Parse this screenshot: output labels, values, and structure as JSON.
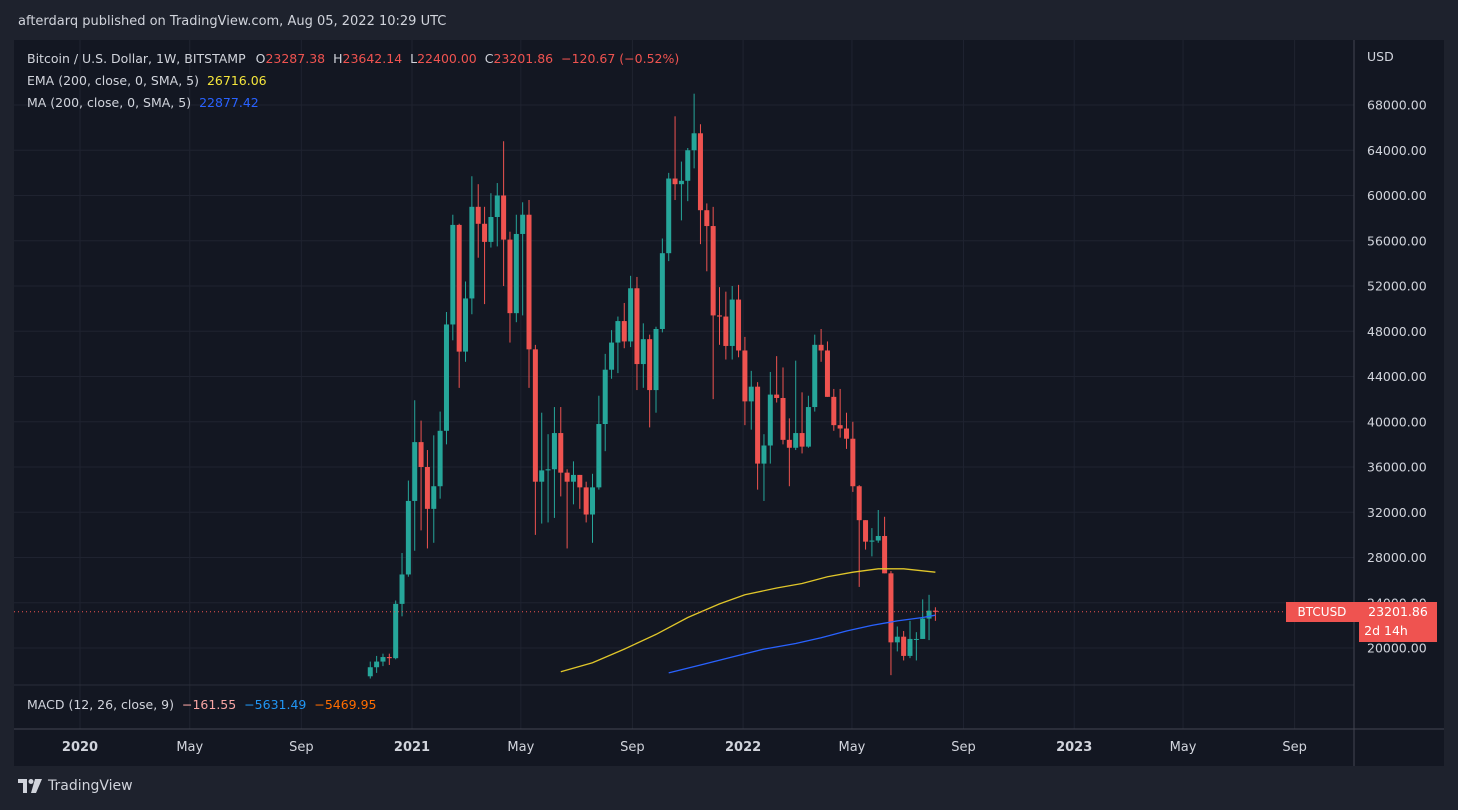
{
  "header": {
    "publish_line": "afterdarq published on TradingView.com, Aug 05, 2022 10:29 UTC"
  },
  "legend": {
    "symbol": "Bitcoin / U.S. Dollar, 1W, BITSTAMP",
    "o_label": "O",
    "o_value": "23287.38",
    "h_label": "H",
    "h_value": "23642.14",
    "l_label": "L",
    "l_value": "22400.00",
    "c_label": "C",
    "c_value": "23201.86",
    "change": "−120.67 (−0.52%)",
    "ema_label": "EMA (200, close, 0, SMA, 5)",
    "ema_value": "26716.06",
    "ma_label": "MA (200, close, 0, SMA, 5)",
    "ma_value": "22877.42",
    "macd_label": "MACD (12, 26, close, 9)",
    "macd_hist": "−161.55",
    "macd_line": "−5631.49",
    "macd_signal": "−5469.95"
  },
  "price_tag": {
    "symbol": "BTCUSD",
    "price": "23201.86",
    "countdown": "2d 14h"
  },
  "footer": {
    "brand": "TradingView"
  },
  "colors": {
    "background": "#131722",
    "up": "#26a69a",
    "down": "#ef5350",
    "ema": "#e0c62a",
    "ma": "#2962ff",
    "macd_line": "#2196f3",
    "macd_signal": "#ff6d00"
  },
  "chart_data": {
    "type": "candlestick",
    "currency": "USD",
    "y_ticks": [
      20000,
      24000,
      28000,
      32000,
      36000,
      40000,
      44000,
      48000,
      52000,
      56000,
      60000,
      64000,
      68000
    ],
    "y_tick_labels": [
      "20000.00",
      "24000.00",
      "28000.00",
      "32000.00",
      "36000.00",
      "40000.00",
      "44000.00",
      "48000.00",
      "52000.00",
      "56000.00",
      "60000.00",
      "64000.00",
      "68000.00"
    ],
    "x_ticks": [
      {
        "label": "2020",
        "date": "2020-01-01",
        "bold": true
      },
      {
        "label": "May",
        "date": "2020-05-01"
      },
      {
        "label": "Sep",
        "date": "2020-09-01"
      },
      {
        "label": "2021",
        "date": "2021-01-01",
        "bold": true
      },
      {
        "label": "May",
        "date": "2021-05-01"
      },
      {
        "label": "Sep",
        "date": "2021-09-01"
      },
      {
        "label": "2022",
        "date": "2022-01-01",
        "bold": true
      },
      {
        "label": "May",
        "date": "2022-05-01"
      },
      {
        "label": "Sep",
        "date": "2022-09-01"
      },
      {
        "label": "2023",
        "date": "2023-01-01",
        "bold": true
      },
      {
        "label": "May",
        "date": "2023-05-01"
      },
      {
        "label": "Sep",
        "date": "2023-09-01"
      }
    ],
    "last_price": 23201.86,
    "candles": [
      [
        "2020-11-16",
        17500,
        18800,
        17300,
        18300
      ],
      [
        "2020-11-23",
        18300,
        19300,
        17800,
        18800
      ],
      [
        "2020-11-30",
        18800,
        19500,
        18400,
        19200
      ],
      [
        "2020-12-07",
        19200,
        19500,
        18500,
        19100
      ],
      [
        "2020-12-14",
        19100,
        24200,
        19000,
        23900
      ],
      [
        "2020-12-21",
        23900,
        28400,
        22800,
        26500
      ],
      [
        "2020-12-28",
        26500,
        34800,
        26300,
        33000
      ],
      [
        "2021-01-04",
        33000,
        41900,
        28600,
        38200
      ],
      [
        "2021-01-11",
        38200,
        40100,
        30400,
        36000
      ],
      [
        "2021-01-18",
        36000,
        37500,
        28800,
        32300
      ],
      [
        "2021-01-25",
        32300,
        38800,
        29300,
        34300
      ],
      [
        "2021-02-01",
        34300,
        40900,
        33200,
        39200
      ],
      [
        "2021-02-08",
        39200,
        49700,
        38000,
        48600
      ],
      [
        "2021-02-15",
        48600,
        58300,
        47200,
        57400
      ],
      [
        "2021-02-22",
        57400,
        57500,
        43000,
        46200
      ],
      [
        "2021-03-01",
        46200,
        52400,
        45300,
        50900
      ],
      [
        "2021-03-08",
        50900,
        61700,
        49500,
        59000
      ],
      [
        "2021-03-15",
        59000,
        61000,
        54500,
        57500
      ],
      [
        "2021-03-22",
        57500,
        59000,
        50400,
        55900
      ],
      [
        "2021-03-29",
        55900,
        60200,
        55400,
        58100
      ],
      [
        "2021-04-05",
        58100,
        61100,
        55500,
        60000
      ],
      [
        "2021-04-12",
        60000,
        64800,
        52000,
        56100
      ],
      [
        "2021-04-19",
        56100,
        56800,
        47000,
        49600
      ],
      [
        "2021-04-26",
        49600,
        58300,
        48800,
        56600
      ],
      [
        "2021-05-03",
        56600,
        59400,
        49400,
        58300
      ],
      [
        "2021-05-10",
        58300,
        59600,
        43000,
        46400
      ],
      [
        "2021-05-17",
        46400,
        46800,
        30000,
        34700
      ],
      [
        "2021-05-24",
        34700,
        40800,
        31000,
        35700
      ],
      [
        "2021-05-31",
        35700,
        38900,
        31100,
        35800
      ],
      [
        "2021-06-07",
        35800,
        41300,
        31500,
        39000
      ],
      [
        "2021-06-14",
        39000,
        41300,
        33400,
        35500
      ],
      [
        "2021-06-21",
        35500,
        35800,
        28800,
        34700
      ],
      [
        "2021-06-28",
        34700,
        36500,
        32700,
        35300
      ],
      [
        "2021-07-05",
        35300,
        35300,
        32300,
        34200
      ],
      [
        "2021-07-12",
        34200,
        34700,
        31100,
        31800
      ],
      [
        "2021-07-19",
        31800,
        35400,
        29300,
        34200
      ],
      [
        "2021-07-26",
        34200,
        42300,
        34000,
        39800
      ],
      [
        "2021-08-02",
        39800,
        46000,
        37400,
        44600
      ],
      [
        "2021-08-09",
        44600,
        48100,
        43800,
        47000
      ],
      [
        "2021-08-16",
        47000,
        49300,
        44300,
        48900
      ],
      [
        "2021-08-23",
        48900,
        50500,
        46500,
        47100
      ],
      [
        "2021-08-30",
        47100,
        52900,
        46600,
        51800
      ],
      [
        "2021-09-06",
        51800,
        52800,
        42800,
        45100
      ],
      [
        "2021-09-13",
        45100,
        48700,
        43000,
        47300
      ],
      [
        "2021-09-20",
        47300,
        47700,
        39500,
        42800
      ],
      [
        "2021-09-27",
        42800,
        48400,
        40800,
        48200
      ],
      [
        "2021-10-04",
        48200,
        56200,
        47900,
        54900
      ],
      [
        "2021-10-11",
        54900,
        62000,
        54200,
        61500
      ],
      [
        "2021-10-18",
        61500,
        67000,
        59600,
        61000
      ],
      [
        "2021-10-25",
        61000,
        63000,
        57800,
        61300
      ],
      [
        "2021-11-01",
        61300,
        64200,
        59500,
        64000
      ],
      [
        "2021-11-08",
        64000,
        69000,
        62400,
        65500
      ],
      [
        "2021-11-15",
        65500,
        66300,
        55700,
        58700
      ],
      [
        "2021-11-22",
        58700,
        59300,
        53300,
        57300
      ],
      [
        "2021-11-29",
        57300,
        59000,
        42000,
        49400
      ],
      [
        "2021-12-06",
        49400,
        51900,
        46800,
        49300
      ],
      [
        "2021-12-13",
        49300,
        51500,
        45500,
        46700
      ],
      [
        "2021-12-20",
        46700,
        52000,
        45500,
        50800
      ],
      [
        "2021-12-27",
        50800,
        52100,
        45700,
        46300
      ],
      [
        "2022-01-03",
        46300,
        47500,
        39700,
        41800
      ],
      [
        "2022-01-10",
        41800,
        44500,
        39300,
        43100
      ],
      [
        "2022-01-17",
        43100,
        43500,
        34000,
        36300
      ],
      [
        "2022-01-24",
        36300,
        38900,
        33000,
        37900
      ],
      [
        "2022-01-31",
        37900,
        44400,
        36300,
        42400
      ],
      [
        "2022-02-07",
        42400,
        45800,
        41700,
        42100
      ],
      [
        "2022-02-14",
        42100,
        44800,
        38000,
        38400
      ],
      [
        "2022-02-21",
        38400,
        40300,
        34300,
        37700
      ],
      [
        "2022-02-28",
        37700,
        45400,
        37500,
        39000
      ],
      [
        "2022-03-07",
        39000,
        42600,
        37200,
        37800
      ],
      [
        "2022-03-14",
        37800,
        42300,
        37700,
        41300
      ],
      [
        "2022-03-21",
        41300,
        47700,
        40900,
        46800
      ],
      [
        "2022-03-28",
        46800,
        48200,
        45300,
        46300
      ],
      [
        "2022-04-04",
        46300,
        47100,
        42200,
        42200
      ],
      [
        "2022-04-11",
        42200,
        42900,
        39200,
        39700
      ],
      [
        "2022-04-18",
        39700,
        42900,
        38600,
        39400
      ],
      [
        "2022-04-25",
        39400,
        40800,
        37600,
        38500
      ],
      [
        "2022-05-02",
        38500,
        40000,
        33800,
        34300
      ],
      [
        "2022-05-09",
        34300,
        34400,
        25400,
        31300
      ],
      [
        "2022-05-16",
        31300,
        31300,
        28700,
        29400
      ],
      [
        "2022-05-23",
        29400,
        30600,
        28100,
        29500
      ],
      [
        "2022-05-30",
        29500,
        32200,
        29300,
        29900
      ],
      [
        "2022-06-06",
        29900,
        31600,
        26600,
        26600
      ],
      [
        "2022-06-13",
        26600,
        26800,
        17600,
        20500
      ],
      [
        "2022-06-20",
        20500,
        21900,
        19700,
        21000
      ],
      [
        "2022-06-27",
        21000,
        21500,
        18900,
        19300
      ],
      [
        "2022-07-04",
        19300,
        22400,
        19100,
        20800
      ],
      [
        "2022-07-11",
        20800,
        21400,
        18900,
        20800
      ],
      [
        "2022-07-18",
        20800,
        24300,
        20800,
        22600
      ],
      [
        "2022-07-25",
        22600,
        24700,
        20700,
        23300
      ],
      [
        "2022-08-01",
        23300,
        23600,
        22400,
        23200
      ]
    ],
    "ema_200_line": [
      [
        "2021-06-14",
        17900
      ],
      [
        "2021-07-19",
        18700
      ],
      [
        "2021-08-23",
        19900
      ],
      [
        "2021-09-27",
        21200
      ],
      [
        "2021-11-01",
        22700
      ],
      [
        "2021-12-06",
        23900
      ],
      [
        "2022-01-03",
        24700
      ],
      [
        "2022-02-07",
        25300
      ],
      [
        "2022-03-07",
        25700
      ],
      [
        "2022-04-04",
        26300
      ],
      [
        "2022-05-02",
        26700
      ],
      [
        "2022-05-30",
        27000
      ],
      [
        "2022-06-27",
        27000
      ],
      [
        "2022-08-01",
        26700
      ]
    ],
    "ma_200_line": [
      [
        "2021-10-11",
        17800
      ],
      [
        "2021-11-15",
        18500
      ],
      [
        "2021-12-20",
        19200
      ],
      [
        "2022-01-24",
        19900
      ],
      [
        "2022-02-28",
        20400
      ],
      [
        "2022-03-28",
        20900
      ],
      [
        "2022-04-25",
        21500
      ],
      [
        "2022-05-23",
        22000
      ],
      [
        "2022-06-20",
        22400
      ],
      [
        "2022-07-18",
        22700
      ],
      [
        "2022-08-01",
        22900
      ]
    ]
  }
}
